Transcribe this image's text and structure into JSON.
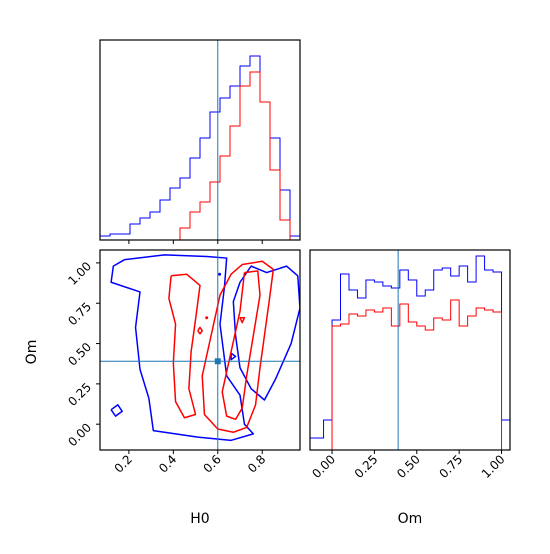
{
  "chart_data": {
    "type": "corner",
    "colors": {
      "blue": "#0000ff",
      "red": "#ff0000",
      "truth": "#1f77b4"
    },
    "truth": {
      "H0": 0.6,
      "Om": 0.39
    },
    "panels": [
      {
        "id": "hist-H0",
        "type": "histogram",
        "xlabel": "",
        "xlim": [
          0.07,
          0.97
        ],
        "ylim": [
          0,
          1
        ],
        "y_ticks_shown": false,
        "series": [
          {
            "name": "",
            "color": "#0000ff",
            "edges": [
              0.07,
              0.115,
              0.16,
              0.205,
              0.25,
              0.295,
              0.34,
              0.385,
              0.43,
              0.475,
              0.52,
              0.565,
              0.61,
              0.655,
              0.7,
              0.745,
              0.79,
              0.835,
              0.88,
              0.925,
              0.97
            ],
            "heights": [
              0.02,
              0.03,
              0.03,
              0.08,
              0.11,
              0.14,
              0.2,
              0.26,
              0.31,
              0.41,
              0.51,
              0.64,
              0.71,
              0.77,
              0.87,
              0.92,
              0.69,
              0.51,
              0.25,
              0.02
            ]
          },
          {
            "name": "",
            "color": "#ff0000",
            "edges": [
              0.07,
              0.115,
              0.16,
              0.205,
              0.25,
              0.295,
              0.34,
              0.385,
              0.43,
              0.475,
              0.52,
              0.565,
              0.61,
              0.655,
              0.7,
              0.745,
              0.79,
              0.835,
              0.88,
              0.925,
              0.97
            ],
            "heights": [
              0,
              0,
              0,
              0,
              0,
              0,
              0,
              0,
              0.06,
              0.14,
              0.19,
              0.29,
              0.42,
              0.57,
              0.77,
              0.84,
              0.69,
              0.35,
              0.1,
              0
            ]
          }
        ]
      },
      {
        "id": "hist-Om",
        "type": "histogram",
        "xlabel": "Om",
        "xlim": [
          -0.13,
          1.05
        ],
        "ylim": [
          0,
          1
        ],
        "x_ticks": [
          0.0,
          0.25,
          0.5,
          0.75,
          1.0
        ],
        "x_tick_labels": [
          "0.00",
          "0.25",
          "0.50",
          "0.75",
          "1.00"
        ],
        "y_ticks_shown": false,
        "series": [
          {
            "name": "",
            "color": "#0000ff",
            "edges": [
              -0.13,
              -0.1,
              -0.05,
              0.0,
              0.05,
              0.1,
              0.15,
              0.2,
              0.25,
              0.3,
              0.35,
              0.4,
              0.45,
              0.5,
              0.55,
              0.6,
              0.65,
              0.7,
              0.75,
              0.8,
              0.85,
              0.9,
              0.95,
              1.0,
              1.05
            ],
            "heights": [
              0.06,
              0.06,
              0.15,
              0.65,
              0.88,
              0.8,
              0.76,
              0.85,
              0.84,
              0.82,
              0.81,
              0.9,
              0.85,
              0.77,
              0.8,
              0.9,
              0.91,
              0.87,
              0.92,
              0.84,
              0.97,
              0.9,
              0.89,
              0.15
            ]
          },
          {
            "name": "",
            "color": "#ff0000",
            "edges": [
              0.0,
              0.05,
              0.1,
              0.15,
              0.2,
              0.25,
              0.3,
              0.35,
              0.4,
              0.45,
              0.5,
              0.55,
              0.6,
              0.65,
              0.7,
              0.75,
              0.8,
              0.85,
              0.9,
              0.95,
              1.0
            ],
            "heights": [
              0.62,
              0.63,
              0.68,
              0.67,
              0.7,
              0.69,
              0.71,
              0.62,
              0.73,
              0.64,
              0.62,
              0.6,
              0.66,
              0.65,
              0.75,
              0.62,
              0.67,
              0.71,
              0.7,
              0.69
            ]
          }
        ]
      },
      {
        "id": "contour-H0-Om",
        "type": "contour",
        "xlabel": "H0",
        "ylabel": "Om",
        "xlim": [
          0.07,
          0.97
        ],
        "ylim": [
          -0.16,
          1.08
        ],
        "x_ticks": [
          0.2,
          0.4,
          0.6,
          0.8
        ],
        "x_tick_labels": [
          "0.2",
          "0.4",
          "0.6",
          "0.8"
        ],
        "y_ticks": [
          0.0,
          0.25,
          0.5,
          0.75,
          1.0
        ],
        "y_tick_labels": [
          "0.00",
          "0.25",
          "0.50",
          "0.75",
          "1.00"
        ],
        "contours": [
          {
            "color": "#0000ff",
            "points": [
              [
                0.18,
                1.02
              ],
              [
                0.36,
                1.05
              ],
              [
                0.55,
                1.04
              ],
              [
                0.64,
                1.03
              ],
              [
                0.63,
                0.85
              ],
              [
                0.61,
                0.62
              ],
              [
                0.64,
                0.3
              ],
              [
                0.7,
                0.18
              ],
              [
                0.72,
                0.0
              ],
              [
                0.76,
                -0.06
              ],
              [
                0.66,
                -0.1
              ],
              [
                0.51,
                -0.08
              ],
              [
                0.31,
                -0.04
              ],
              [
                0.29,
                0.16
              ],
              [
                0.25,
                0.34
              ],
              [
                0.23,
                0.6
              ],
              [
                0.25,
                0.82
              ],
              [
                0.12,
                0.88
              ],
              [
                0.13,
                0.98
              ],
              [
                0.18,
                1.02
              ]
            ]
          },
          {
            "color": "#0000ff",
            "points": [
              [
                0.7,
                0.88
              ],
              [
                0.67,
                0.76
              ],
              [
                0.68,
                0.55
              ],
              [
                0.7,
                0.35
              ],
              [
                0.75,
                0.22
              ],
              [
                0.81,
                0.15
              ],
              [
                0.86,
                0.28
              ],
              [
                0.93,
                0.5
              ],
              [
                0.97,
                0.72
              ],
              [
                0.96,
                0.92
              ],
              [
                0.91,
                0.98
              ],
              [
                0.82,
                0.94
              ],
              [
                0.75,
                0.98
              ],
              [
                0.7,
                0.88
              ]
            ]
          },
          {
            "color": "#0000ff",
            "points": [
              [
                0.12,
                0.09
              ],
              [
                0.15,
                0.12
              ],
              [
                0.17,
                0.08
              ],
              [
                0.14,
                0.05
              ],
              [
                0.12,
                0.09
              ]
            ]
          },
          {
            "color": "#0000ff",
            "points": [
              [
                0.66,
                0.44
              ],
              [
                0.66,
                0.4
              ],
              [
                0.68,
                0.42
              ],
              [
                0.66,
                0.44
              ]
            ]
          },
          {
            "color": "#ff0000",
            "points": [
              [
                0.71,
                0.99
              ],
              [
                0.8,
                1.01
              ],
              [
                0.85,
                0.96
              ],
              [
                0.83,
                0.75
              ],
              [
                0.81,
                0.55
              ],
              [
                0.79,
                0.35
              ],
              [
                0.77,
                0.12
              ],
              [
                0.73,
                -0.02
              ],
              [
                0.67,
                -0.05
              ],
              [
                0.6,
                -0.03
              ],
              [
                0.54,
                0.06
              ],
              [
                0.53,
                0.3
              ],
              [
                0.57,
                0.55
              ],
              [
                0.61,
                0.8
              ],
              [
                0.66,
                0.93
              ],
              [
                0.71,
                0.99
              ]
            ]
          },
          {
            "color": "#ff0000",
            "points": [
              [
                0.72,
                0.94
              ],
              [
                0.78,
                0.95
              ],
              [
                0.79,
                0.8
              ],
              [
                0.76,
                0.55
              ],
              [
                0.73,
                0.3
              ],
              [
                0.71,
                0.1
              ],
              [
                0.68,
                0.03
              ],
              [
                0.64,
                0.05
              ],
              [
                0.62,
                0.2
              ],
              [
                0.66,
                0.45
              ],
              [
                0.7,
                0.7
              ],
              [
                0.72,
                0.94
              ]
            ]
          },
          {
            "color": "#ff0000",
            "points": [
              [
                0.39,
                0.92
              ],
              [
                0.46,
                0.93
              ],
              [
                0.52,
                0.86
              ],
              [
                0.5,
                0.65
              ],
              [
                0.48,
                0.45
              ],
              [
                0.47,
                0.22
              ],
              [
                0.5,
                0.06
              ],
              [
                0.45,
                0.04
              ],
              [
                0.41,
                0.14
              ],
              [
                0.4,
                0.38
              ],
              [
                0.41,
                0.62
              ],
              [
                0.38,
                0.78
              ],
              [
                0.39,
                0.92
              ]
            ]
          },
          {
            "color": "#ff0000",
            "points": [
              [
                0.7,
                0.66
              ],
              [
                0.71,
                0.63
              ],
              [
                0.72,
                0.66
              ],
              [
                0.7,
                0.66
              ]
            ]
          },
          {
            "color": "#ff0000",
            "points": [
              [
                0.51,
                0.58
              ],
              [
                0.52,
                0.56
              ],
              [
                0.53,
                0.58
              ],
              [
                0.52,
                0.6
              ],
              [
                0.51,
                0.58
              ]
            ]
          }
        ],
        "dots": [
          {
            "color": "#0000ff",
            "x": 0.608,
            "y": 0.93
          },
          {
            "color": "#ff0000",
            "x": 0.55,
            "y": 0.66
          }
        ]
      }
    ]
  }
}
